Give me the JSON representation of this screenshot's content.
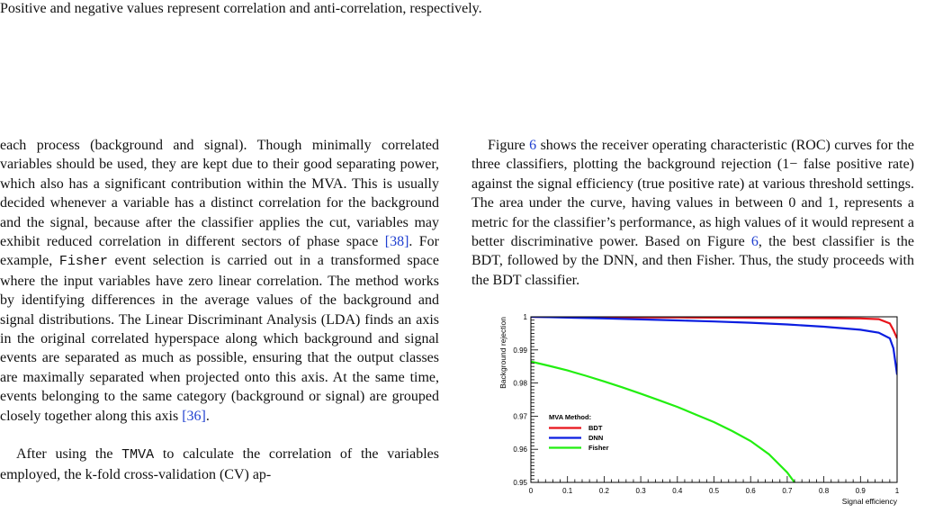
{
  "caption_tail": "Positive and negative values represent correlation and anti-correlation, respectively.",
  "left_column": {
    "p1_a": "each process (background and signal). Though minimally correlated variables should be used, they are kept due to their good separating power, which also has a significant contribution within the MVA. This is usually decided whenever a variable has a distinct correlation for the background and the signal, because after the classifier applies the cut, variables may exhibit reduced correlation in different sectors of phase space ",
    "cite_38": "[38]",
    "p1_b": ". For example, ",
    "fisher_code": "Fisher",
    "p1_c": " event selection is carried out in a transformed space where the input variables have zero linear correlation. The method works by identifying differences in the average values of the background and signal distributions. The Linear Discriminant Analysis (LDA) finds an axis in the original correlated hyperspace along which background and signal events are separated as much as possible, ensuring that the output classes are maximally separated when projected onto this axis. At the same time, events belonging to the same category (background or signal) are grouped closely together along this axis ",
    "cite_36": "[36]",
    "p1_d": ".",
    "p2_a": "After using the ",
    "tmva_code": "TMVA",
    "p2_b": " to calculate the correlation of the variables employed, the k-fold cross-validation (CV) ap-"
  },
  "right_column": {
    "p1_a": "Figure ",
    "fig_ref": "6",
    "p1_b": " shows the receiver operating characteristic (ROC) curves for the three classifiers, plotting the background rejection (1− false positive rate) against the signal efficiency (true positive rate) at various threshold settings. The area under the curve, having values in between 0 and 1, represents a metric for the classifier’s performance, as high values of it would represent a better discriminative power. Based on Figure ",
    "fig_ref2": "6",
    "p1_c": ", the best classifier is the BDT, followed by the DNN, and then Fisher. Thus, the study proceeds with the BDT classifier."
  },
  "chart_data": {
    "type": "line",
    "title": "",
    "xlabel": "Signal efficiency",
    "ylabel": "Background rejection",
    "xlim": [
      0,
      1
    ],
    "ylim": [
      0.95,
      1
    ],
    "x_ticks": [
      "0",
      "0.1",
      "0.2",
      "0.3",
      "0.4",
      "0.5",
      "0.6",
      "0.7",
      "0.8",
      "0.9",
      "1"
    ],
    "y_ticks": [
      "0.95",
      "0.96",
      "0.97",
      "0.98",
      "0.99",
      "1"
    ],
    "legend_title": "MVA Method:",
    "legend_position": "bottom-left",
    "series": [
      {
        "name": "BDT",
        "color": "#e8141b",
        "points": [
          [
            0,
            1.0
          ],
          [
            0.1,
            0.99995
          ],
          [
            0.2,
            0.9999
          ],
          [
            0.3,
            0.99985
          ],
          [
            0.4,
            0.9998
          ],
          [
            0.5,
            0.99975
          ],
          [
            0.6,
            0.9997
          ],
          [
            0.7,
            0.99965
          ],
          [
            0.8,
            0.9996
          ],
          [
            0.9,
            0.9995
          ],
          [
            0.95,
            0.9993
          ],
          [
            0.98,
            0.998
          ],
          [
            0.99,
            0.996
          ],
          [
            1.0,
            0.9935
          ]
        ]
      },
      {
        "name": "DNN",
        "color": "#0b1ee0",
        "points": [
          [
            0,
            1.0
          ],
          [
            0.05,
            0.9999
          ],
          [
            0.1,
            0.99975
          ],
          [
            0.2,
            0.9995
          ],
          [
            0.3,
            0.9992
          ],
          [
            0.4,
            0.9989
          ],
          [
            0.5,
            0.9986
          ],
          [
            0.6,
            0.9982
          ],
          [
            0.7,
            0.9977
          ],
          [
            0.8,
            0.997
          ],
          [
            0.9,
            0.9961
          ],
          [
            0.95,
            0.9952
          ],
          [
            0.98,
            0.9935
          ],
          [
            0.99,
            0.9905
          ],
          [
            1.0,
            0.9825
          ]
        ]
      },
      {
        "name": "Fisher",
        "color": "#22ee10",
        "points": [
          [
            0,
            0.9865
          ],
          [
            0.05,
            0.9852
          ],
          [
            0.1,
            0.9838
          ],
          [
            0.15,
            0.9822
          ],
          [
            0.2,
            0.9805
          ],
          [
            0.25,
            0.9787
          ],
          [
            0.3,
            0.9768
          ],
          [
            0.35,
            0.9748
          ],
          [
            0.4,
            0.9728
          ],
          [
            0.45,
            0.9705
          ],
          [
            0.5,
            0.9682
          ],
          [
            0.55,
            0.9655
          ],
          [
            0.6,
            0.9625
          ],
          [
            0.65,
            0.9585
          ],
          [
            0.7,
            0.953
          ],
          [
            0.72,
            0.95
          ]
        ]
      }
    ]
  }
}
